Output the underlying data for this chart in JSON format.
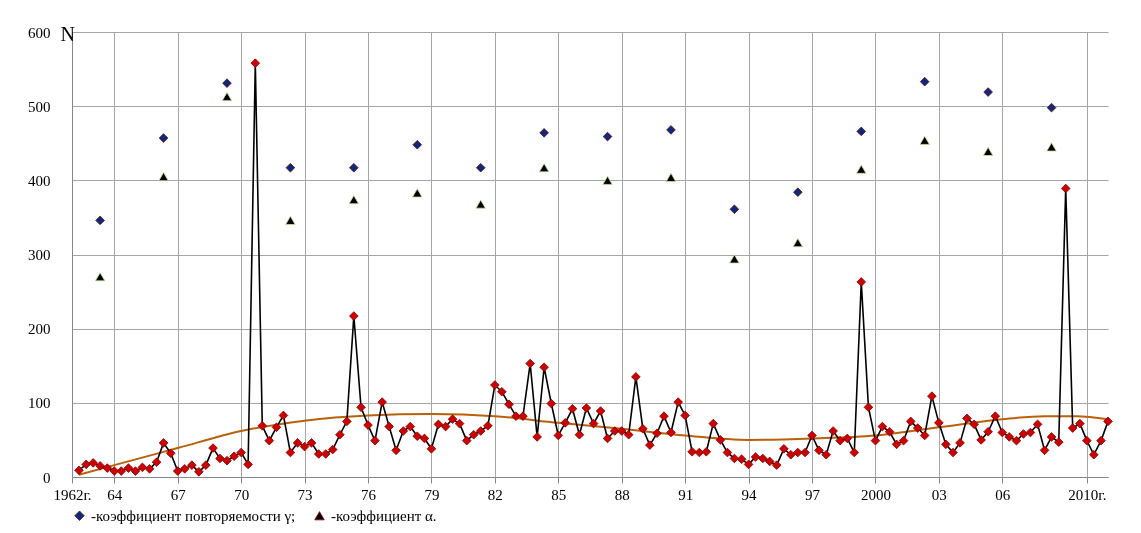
{
  "chart_data": {
    "type": "line",
    "ylabel": "N",
    "xlim": [
      1962,
      2011
    ],
    "ylim": [
      0,
      600
    ],
    "yticks": [
      0,
      100,
      200,
      300,
      400,
      500,
      600
    ],
    "xticks": [
      {
        "value": 1962,
        "label": "1962г."
      },
      {
        "value": 1964,
        "label": "64"
      },
      {
        "value": 1967,
        "label": "67"
      },
      {
        "value": 1970,
        "label": "70"
      },
      {
        "value": 1973,
        "label": "73"
      },
      {
        "value": 1976,
        "label": "76"
      },
      {
        "value": 1979,
        "label": "79"
      },
      {
        "value": 1982,
        "label": "82"
      },
      {
        "value": 1985,
        "label": "85"
      },
      {
        "value": 1988,
        "label": "88"
      },
      {
        "value": 1991,
        "label": "91"
      },
      {
        "value": 1994,
        "label": "94"
      },
      {
        "value": 1997,
        "label": "97"
      },
      2000,
      {
        "value": 2003,
        "label": "03"
      },
      {
        "value": 2006,
        "label": "06"
      },
      {
        "value": 2010,
        "label": "2010г."
      }
    ],
    "grid": true,
    "legend": "bottom",
    "series": [
      {
        "type": "line",
        "color": "#b8600a",
        "marker": "none",
        "x": [
          1962.33,
          1964,
          1967,
          1970,
          1973,
          1976,
          1979,
          1982,
          1985,
          1988,
          1991,
          1994,
          1997,
          2000,
          2003,
          2006,
          2008,
          2009.5,
          2011
        ],
        "values": [
          3,
          16,
          39,
          62,
          76,
          83,
          85,
          82,
          73,
          65,
          56,
          50,
          52,
          56,
          67,
          78,
          82,
          82,
          78
        ]
      },
      {
        "type": "line",
        "color": "#cc0000",
        "marker": "diamond",
        "x": [
          1962.33,
          1962.67,
          1963,
          1963.33,
          1963.67,
          1964,
          1964.33,
          1964.67,
          1965,
          1965.33,
          1965.67,
          1966,
          1966.33,
          1966.67,
          1967,
          1967.33,
          1967.67,
          1968,
          1968.33,
          1968.67,
          1969,
          1969.33,
          1969.67,
          1970,
          1970.33,
          1970.67,
          1971,
          1971.33,
          1971.67,
          1972,
          1972.33,
          1972.67,
          1973,
          1973.33,
          1973.67,
          1974,
          1974.33,
          1974.67,
          1975,
          1975.33,
          1975.67,
          1976,
          1976.33,
          1976.67,
          1977,
          1977.33,
          1977.67,
          1978,
          1978.33,
          1978.67,
          1979,
          1979.33,
          1979.67,
          1980,
          1980.33,
          1980.67,
          1981,
          1981.33,
          1981.67,
          1982,
          1982.33,
          1982.67,
          1983,
          1983.33,
          1983.67,
          1984,
          1984.33,
          1984.67,
          1985,
          1985.33,
          1985.67,
          1986,
          1986.33,
          1986.67,
          1987,
          1987.33,
          1987.67,
          1988,
          1988.33,
          1988.67,
          1989,
          1989.33,
          1989.67,
          1990,
          1990.33,
          1990.67,
          1991,
          1991.33,
          1991.67,
          1992,
          1992.33,
          1992.67,
          1993,
          1993.33,
          1993.67,
          1994,
          1994.33,
          1994.67,
          1995,
          1995.33,
          1995.67,
          1996,
          1996.33,
          1996.67,
          1997,
          1997.33,
          1997.67,
          1998,
          1998.33,
          1998.67,
          1999,
          1999.33,
          1999.67,
          2000,
          2000.33,
          2000.67,
          2001,
          2001.33,
          2001.67,
          2002,
          2002.33,
          2002.67,
          2003,
          2003.33,
          2003.67,
          2004,
          2004.33,
          2004.67,
          2005,
          2005.33,
          2005.67,
          2006,
          2006.33,
          2006.67,
          2007,
          2007.33,
          2007.67,
          2008,
          2008.33,
          2008.67,
          2009,
          2009.33,
          2009.67,
          2010,
          2010.33,
          2010.67,
          2011
        ],
        "values": [
          9,
          17,
          19,
          15,
          12,
          8,
          8,
          12,
          8,
          13,
          11,
          20,
          46,
          32,
          8,
          11,
          16,
          7,
          16,
          39,
          25,
          22,
          28,
          33,
          17,
          558,
          69,
          49,
          67,
          83,
          33,
          46,
          41,
          46,
          31,
          31,
          37,
          57,
          75,
          217,
          94,
          70,
          49,
          101,
          68,
          36,
          62,
          68,
          55,
          52,
          38,
          71,
          68,
          78,
          72,
          49,
          57,
          62,
          69,
          124,
          115,
          98,
          82,
          82,
          153,
          54,
          148,
          99,
          56,
          73,
          92,
          57,
          93,
          72,
          89,
          52,
          62,
          62,
          57,
          135,
          65,
          43,
          59,
          82,
          60,
          101,
          83,
          34,
          33,
          34,
          72,
          50,
          33,
          25,
          24,
          17,
          27,
          25,
          21,
          16,
          38,
          30,
          33,
          33,
          56,
          36,
          30,
          62,
          49,
          52,
          33,
          263,
          94,
          49,
          68,
          61,
          44,
          49,
          75,
          66,
          56,
          109,
          73,
          44,
          33,
          46,
          79,
          71,
          50,
          61,
          82,
          60,
          54,
          49,
          58,
          60,
          71,
          36,
          54,
          47,
          389,
          66,
          72,
          49,
          30,
          49,
          75
        ]
      },
      {
        "type": "scatter",
        "name": "-коэффициент повторяемости γ;",
        "color": "#002b7f",
        "marker": "diamond",
        "x": [
          1963.33,
          1966.33,
          1969.33,
          1972.33,
          1975.33,
          1978.33,
          1981.33,
          1984.33,
          1987.33,
          1990.33,
          1993.33,
          1996.33,
          1999.33,
          2002.33,
          2005.33,
          2008.33
        ],
        "values": [
          346,
          457,
          531,
          417,
          417,
          448,
          417,
          464,
          459,
          468,
          361,
          384,
          466,
          533,
          519,
          498
        ]
      },
      {
        "type": "scatter",
        "name": "-коэффициент α.",
        "color": "#000000",
        "marker": "triangle",
        "x": [
          1963.33,
          1966.33,
          1969.33,
          1972.33,
          1975.33,
          1978.33,
          1981.33,
          1984.33,
          1987.33,
          1990.33,
          1993.33,
          1996.33,
          1999.33,
          2002.33,
          2005.33,
          2008.33
        ],
        "values": [
          270,
          405,
          513,
          346,
          374,
          383,
          368,
          417,
          400,
          404,
          294,
          316,
          415,
          454,
          439,
          445
        ]
      }
    ]
  }
}
